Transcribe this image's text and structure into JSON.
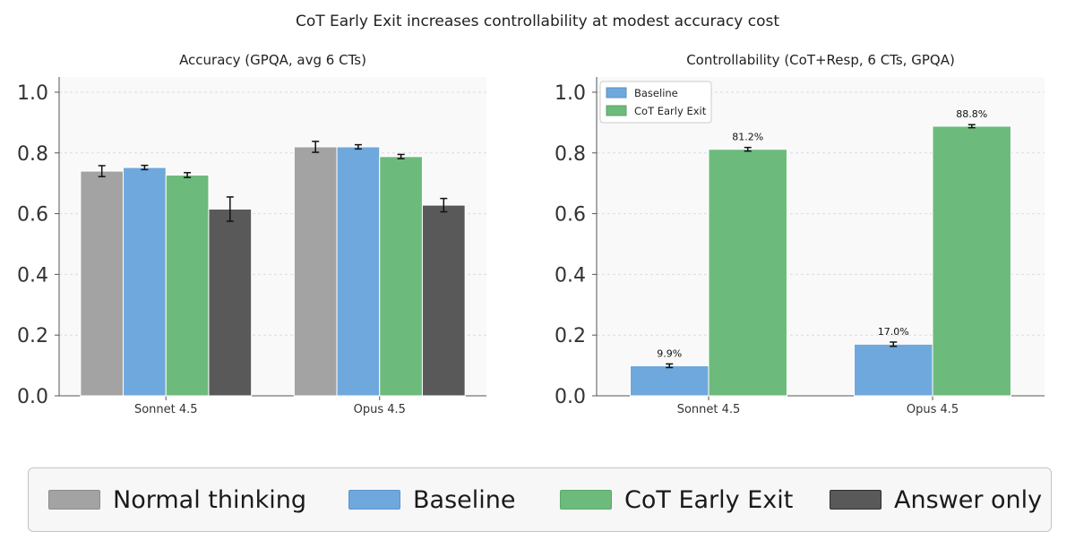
{
  "figure": {
    "suptitle": "CoT Early Exit increases controllability at modest accuracy cost"
  },
  "colors": {
    "normal_thinking": "#a3a3a3",
    "baseline": "#6fa8dc",
    "cot_early_exit": "#6dbb7c",
    "answer_only": "#595959"
  },
  "legend": {
    "placement": "bottom",
    "items": [
      {
        "label": "Normal thinking",
        "color": "#a3a3a3"
      },
      {
        "label": "Baseline",
        "color": "#6fa8dc"
      },
      {
        "label": "CoT Early Exit",
        "color": "#6dbb7c"
      },
      {
        "label": "Answer only",
        "color": "#595959"
      }
    ]
  },
  "chart_data": [
    {
      "type": "bar",
      "title": "Accuracy (GPQA, avg 6 CTs)",
      "categories": [
        "Sonnet 4.5",
        "Opus 4.5"
      ],
      "ylim": [
        0,
        1.05
      ],
      "yticks": [
        "0.0",
        "0.2",
        "0.4",
        "0.6",
        "0.8",
        "1.0"
      ],
      "grid": true,
      "series": [
        {
          "name": "Normal thinking",
          "color": "#a3a3a3",
          "values": [
            0.74,
            0.82
          ],
          "errors": [
            0.018,
            0.018
          ]
        },
        {
          "name": "Baseline",
          "color": "#6fa8dc",
          "values": [
            0.752,
            0.82
          ],
          "errors": [
            0.007,
            0.007
          ]
        },
        {
          "name": "CoT Early Exit",
          "color": "#6dbb7c",
          "values": [
            0.727,
            0.788
          ],
          "errors": [
            0.008,
            0.007
          ]
        },
        {
          "name": "Answer only",
          "color": "#595959",
          "values": [
            0.615,
            0.628
          ],
          "errors": [
            0.04,
            0.022
          ]
        }
      ]
    },
    {
      "type": "bar",
      "title": "Controllability (CoT+Resp, 6 CTs, GPQA)",
      "categories": [
        "Sonnet 4.5",
        "Opus 4.5"
      ],
      "ylim": [
        0,
        1.05
      ],
      "yticks": [
        "0.0",
        "0.2",
        "0.4",
        "0.6",
        "0.8",
        "1.0"
      ],
      "grid": true,
      "legend": {
        "placement": "top-left",
        "entries": [
          "Baseline",
          "CoT Early Exit"
        ]
      },
      "series": [
        {
          "name": "Baseline",
          "color": "#6fa8dc",
          "values": [
            0.099,
            0.17
          ],
          "errors": [
            0.006,
            0.007
          ],
          "data_labels": [
            "9.9%",
            "17.0%"
          ]
        },
        {
          "name": "CoT Early Exit",
          "color": "#6dbb7c",
          "values": [
            0.812,
            0.888
          ],
          "errors": [
            0.006,
            0.005
          ],
          "data_labels": [
            "81.2%",
            "88.8%"
          ]
        }
      ]
    }
  ]
}
